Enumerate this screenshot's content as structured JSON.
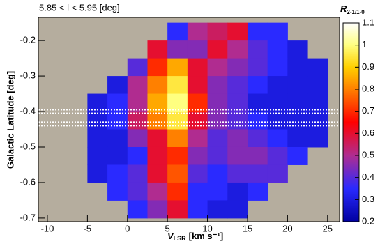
{
  "chart_data": {
    "type": "heatmap",
    "title": "5.85 < l < 5.95 [deg]",
    "xlabel": "V",
    "xlabel_sub": "LSR",
    "xlabel_unit": "[km s⁻¹]",
    "ylabel": "Galactic Latitude [deg]",
    "colorbar_label": "R",
    "colorbar_label_sub": "2-1/1-0",
    "xlim": [
      -11.13,
      26.5
    ],
    "ylim": [
      -0.71,
      -0.135
    ],
    "xticks": [
      -10,
      -5,
      0,
      5,
      10,
      15,
      20,
      25
    ],
    "yticks": [
      -0.2,
      -0.3,
      -0.4,
      -0.5,
      -0.6,
      -0.7
    ],
    "clim": [
      0.2,
      1.1
    ],
    "cticks": [
      0.2,
      0.3,
      0.4,
      0.5,
      0.6,
      0.7,
      0.8,
      0.9,
      1,
      1.1
    ],
    "colormap": [
      {
        "value": 0.2,
        "color": "#0000a0"
      },
      {
        "value": 0.35,
        "color": "#2a2aff"
      },
      {
        "value": 0.5,
        "color": "#b02c90"
      },
      {
        "value": 0.65,
        "color": "#ff0000"
      },
      {
        "value": 0.8,
        "color": "#ff8000"
      },
      {
        "value": 0.9,
        "color": "#ffd000"
      },
      {
        "value": 1.0,
        "color": "#ffff80"
      },
      {
        "value": 1.1,
        "color": "#ffffff"
      }
    ],
    "background": "#b5ad9e",
    "hlines": [
      -0.395,
      -0.405,
      -0.43,
      -0.44
    ],
    "xbins": [
      -5,
      -2.5,
      0,
      2.5,
      5,
      7.5,
      10,
      12.5,
      15,
      17.5,
      20,
      22.5,
      25
    ],
    "ybins": [
      -0.15,
      -0.2,
      -0.25,
      -0.3,
      -0.35,
      -0.4,
      -0.45,
      -0.5,
      -0.55,
      -0.6,
      -0.65,
      -0.7
    ],
    "z": [
      [
        null,
        null,
        null,
        null,
        0.35,
        0.5,
        0.55,
        0.6,
        0.35,
        0.35,
        null,
        null
      ],
      [
        null,
        null,
        null,
        0.6,
        0.45,
        0.45,
        0.6,
        0.5,
        0.4,
        0.35,
        0.3,
        null
      ],
      [
        null,
        null,
        0.4,
        0.7,
        0.85,
        0.6,
        0.5,
        0.45,
        0.4,
        0.35,
        0.3,
        0.3
      ],
      [
        null,
        0.3,
        0.5,
        0.8,
        0.95,
        0.6,
        0.45,
        0.4,
        0.35,
        0.3,
        0.3,
        0.3
      ],
      [
        0.3,
        0.35,
        0.5,
        0.85,
        1.0,
        0.7,
        0.45,
        0.4,
        0.3,
        0.3,
        0.3,
        0.3
      ],
      [
        0.3,
        0.35,
        0.55,
        0.8,
        0.95,
        0.6,
        0.45,
        0.4,
        0.35,
        0.3,
        0.3,
        0.3
      ],
      [
        0.3,
        0.3,
        0.45,
        0.6,
        0.8,
        0.5,
        0.4,
        0.45,
        0.4,
        0.35,
        0.3,
        0.3
      ],
      [
        0.3,
        0.3,
        0.35,
        0.6,
        0.7,
        0.45,
        0.4,
        0.45,
        0.45,
        0.4,
        0.35,
        null
      ],
      [
        0.3,
        0.35,
        0.4,
        0.6,
        0.75,
        0.4,
        0.35,
        0.4,
        0.4,
        0.4,
        null,
        null
      ],
      [
        null,
        0.35,
        0.4,
        0.5,
        0.7,
        0.35,
        0.35,
        0.3,
        0.35,
        null,
        null,
        null
      ],
      [
        null,
        null,
        0.35,
        0.45,
        0.6,
        0.35,
        0.3,
        0.3,
        null,
        null,
        null,
        null
      ]
    ]
  }
}
